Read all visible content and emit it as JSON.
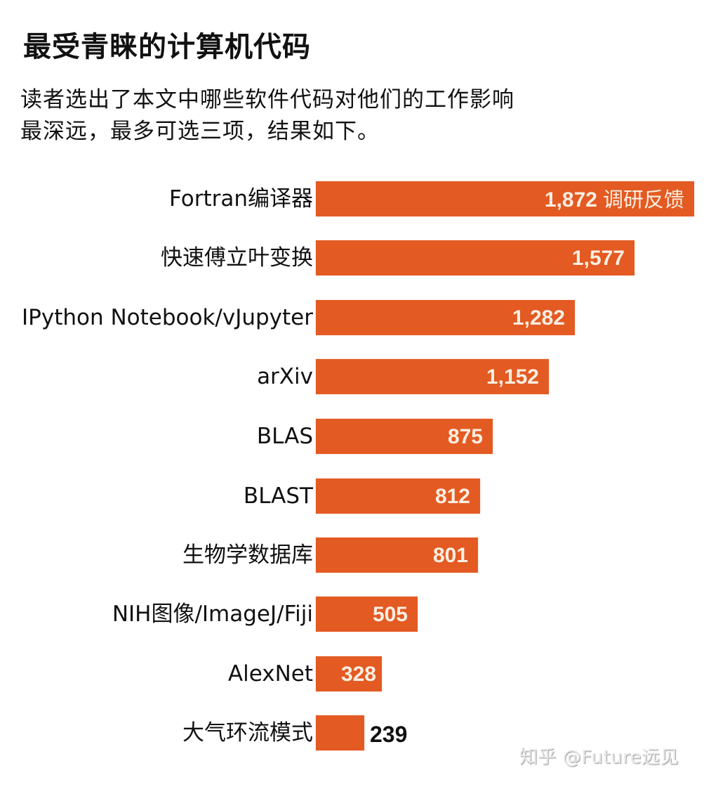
{
  "header": {
    "title": "最受青睐的计算机代码",
    "subtitle_line1": "读者选出了本文中哪些软件代码对他们的工作影响",
    "subtitle_line2": "最深远，最多可选三项，结果如下。"
  },
  "watermark": "知乎 @Future远见",
  "colors": {
    "bar": "#e35a22",
    "value_text": "#fbeee2",
    "text": "#111111"
  },
  "chart_data": {
    "type": "bar",
    "orientation": "horizontal",
    "title": "最受青睐的计算机代码",
    "subtitle": "读者选出了本文中哪些软件代码对他们的工作影响最深远，最多可选三项，结果如下。",
    "xlabel": "",
    "ylabel": "",
    "unit_label": "调研反馈",
    "grid": false,
    "legend": null,
    "categories": [
      "Fortran编译器",
      "快速傅立叶变换",
      "IPython Notebook/vJupyter",
      "arXiv",
      "BLAS",
      "BLAST",
      "生物学数据库",
      "NIH图像/ImageJ/Fiji",
      "AlexNet",
      "大气环流模式"
    ],
    "values": [
      1872,
      1577,
      1282,
      1152,
      875,
      812,
      801,
      505,
      328,
      239
    ],
    "value_labels": [
      "1,872",
      "1,577",
      "1,282",
      "1,152",
      "875",
      "812",
      "801",
      "505",
      "328",
      "239"
    ],
    "xlim": [
      0,
      1872
    ]
  },
  "rows": [
    {
      "label": "Fortran编译器",
      "value": "1,872",
      "unit": "调研反馈"
    },
    {
      "label": "快速傅立叶变换",
      "value": "1,577"
    },
    {
      "label": "IPython Notebook/vJupyter",
      "value": "1,282"
    },
    {
      "label": "arXiv",
      "value": "1,152"
    },
    {
      "label": "BLAS",
      "value": "875"
    },
    {
      "label": "BLAST",
      "value": "812"
    },
    {
      "label": "生物学数据库",
      "value": "801"
    },
    {
      "label": "NIH图像/ImageJ/Fiji",
      "value": "505"
    },
    {
      "label": "AlexNet",
      "value": "328"
    },
    {
      "label": "大气环流模式",
      "value": "239"
    }
  ]
}
